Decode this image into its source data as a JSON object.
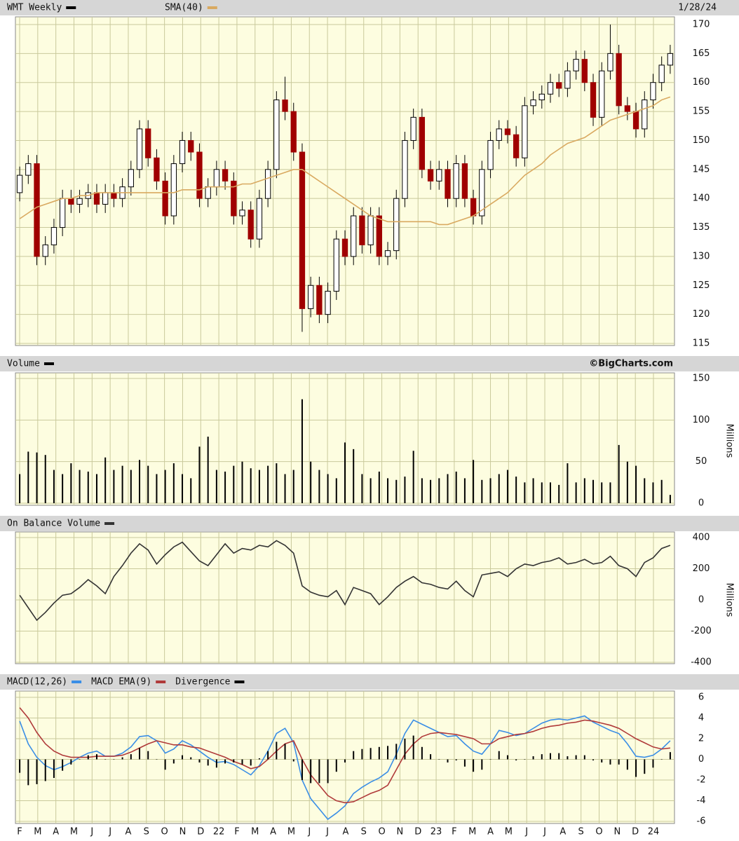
{
  "chart_data": [
    {
      "type": "candlestick",
      "title": "WMT Weekly",
      "date": "1/28/24",
      "color": "#000000",
      "up_color": "#ffffff",
      "down_color": "#a00000",
      "open": [
        141,
        144,
        146,
        130,
        132,
        135,
        140,
        139,
        140,
        141,
        139,
        141,
        140,
        142,
        145,
        152,
        147,
        143,
        137,
        146,
        150,
        148,
        140,
        142,
        145,
        143,
        137,
        138,
        133,
        140,
        145,
        157,
        155,
        148,
        121,
        125,
        120,
        124,
        133,
        130,
        137,
        132,
        137,
        130,
        131,
        140,
        150,
        154,
        145,
        143,
        145,
        140,
        146,
        140,
        137,
        145,
        150,
        152,
        151,
        147,
        156,
        157,
        158,
        160,
        159,
        162,
        164,
        160,
        154,
        162,
        165,
        156,
        155,
        152,
        157,
        160,
        163
      ],
      "high": [
        145.5,
        147.5,
        147.5,
        133.5,
        136.5,
        141.5,
        141.5,
        141.5,
        142.5,
        142.5,
        142.5,
        142.5,
        143.5,
        146.5,
        153.5,
        153.5,
        148.5,
        144.5,
        147.5,
        151.5,
        151.5,
        149.5,
        143.5,
        146.5,
        146.5,
        144.5,
        139.5,
        139.5,
        141.5,
        146.5,
        158.5,
        161,
        156.5,
        149.5,
        126.5,
        126.5,
        125.5,
        134.5,
        134.5,
        138.5,
        138.5,
        138.5,
        138.5,
        132.5,
        141.5,
        151.5,
        155.5,
        155.5,
        146.5,
        146.5,
        146.5,
        147.5,
        147.5,
        141.5,
        146.5,
        151.5,
        153.5,
        153.5,
        152.5,
        157.5,
        158.5,
        159.5,
        161.5,
        161.5,
        163.5,
        165.5,
        165.5,
        161.5,
        163.5,
        170,
        166.5,
        157.5,
        156.5,
        158.5,
        161.5,
        164.5,
        166.5
      ],
      "low": [
        139.5,
        142.5,
        128.5,
        128.5,
        130.5,
        133.5,
        137.5,
        137.5,
        138.5,
        137.5,
        137.5,
        138.5,
        138.5,
        140.5,
        143.5,
        145.5,
        141.5,
        135.5,
        135.5,
        144.5,
        146.5,
        138.5,
        138.5,
        140.5,
        141.5,
        135.5,
        135.5,
        131.5,
        131.5,
        138.5,
        143.5,
        153.5,
        146.5,
        117,
        119.5,
        118.5,
        118.5,
        122.5,
        128.5,
        128.5,
        130.5,
        130.5,
        128.5,
        128.5,
        129.5,
        138.5,
        148.5,
        143.5,
        141.5,
        141.5,
        138.5,
        138.5,
        138.5,
        135.5,
        135.5,
        143.5,
        148.5,
        149.5,
        145.5,
        145.5,
        154.5,
        155.5,
        156.5,
        157.5,
        157.5,
        160.5,
        158.5,
        152.5,
        152.5,
        160.5,
        154.5,
        153.5,
        150.5,
        150.5,
        155.5,
        158.5,
        161.5
      ],
      "close": [
        144,
        146,
        130,
        132,
        135,
        140,
        139,
        140,
        141,
        139,
        141,
        140,
        142,
        145,
        152,
        147,
        143,
        137,
        146,
        150,
        148,
        140,
        142,
        145,
        143,
        137,
        138,
        133,
        140,
        145,
        157,
        155,
        148,
        121,
        125,
        120,
        124,
        133,
        130,
        137,
        132,
        137,
        130,
        131,
        140,
        150,
        154,
        145,
        143,
        145,
        140,
        146,
        140,
        137,
        145,
        150,
        152,
        151,
        147,
        156,
        157,
        158,
        160,
        159,
        162,
        164,
        160,
        154,
        162,
        165,
        156,
        155,
        152,
        157,
        160,
        163,
        165
      ],
      "overlays": [
        {
          "name": "SMA(40)",
          "color": "#d9a960",
          "values": [
            136.5,
            137.5,
            138.5,
            139,
            139.5,
            140,
            140,
            140.5,
            140.5,
            141,
            141,
            141,
            141,
            141,
            141,
            141,
            141,
            141,
            141,
            141.5,
            141.5,
            141.5,
            142,
            142,
            142,
            142,
            142.5,
            142.5,
            143,
            143.5,
            144,
            144.5,
            145,
            145,
            144,
            143,
            142,
            141,
            140,
            139,
            138,
            137,
            136.5,
            136,
            136,
            136,
            136,
            136,
            136,
            135.5,
            135.5,
            136,
            136.5,
            137,
            138,
            139,
            140,
            141,
            142.5,
            144,
            145,
            146,
            147.5,
            148.5,
            149.5,
            150,
            150.5,
            151.5,
            152.5,
            153.5,
            154,
            154.5,
            155,
            155.5,
            156,
            157,
            157.5
          ]
        }
      ],
      "ylim": [
        115,
        170
      ],
      "yticks": [
        115,
        120,
        125,
        130,
        135,
        140,
        145,
        150,
        155,
        160,
        165,
        170
      ],
      "grid": true
    },
    {
      "type": "bar",
      "title": "Volume",
      "credit": "©BigCharts.com",
      "ylabel": "Millions",
      "color": "#000000",
      "values": [
        35,
        62,
        61,
        58,
        40,
        35,
        48,
        40,
        38,
        35,
        55,
        40,
        45,
        40,
        52,
        45,
        35,
        40,
        48,
        35,
        30,
        68,
        80,
        40,
        38,
        45,
        50,
        42,
        40,
        45,
        48,
        35,
        40,
        125,
        50,
        40,
        35,
        30,
        73,
        65,
        35,
        30,
        38,
        30,
        28,
        32,
        63,
        30,
        28,
        30,
        35,
        38,
        30,
        52,
        28,
        30,
        35,
        40,
        32,
        25,
        30,
        25,
        25,
        22,
        48,
        25,
        30,
        28,
        25,
        25,
        70,
        50,
        45,
        30,
        25,
        28,
        10
      ],
      "ylim": [
        0,
        150
      ],
      "yticks": [
        0,
        50,
        100,
        150
      ],
      "grid": true
    },
    {
      "type": "line",
      "title": "On Balance Volume",
      "ylabel": "Millions",
      "color": "#333333",
      "values": [
        30,
        -50,
        -130,
        -80,
        -20,
        30,
        40,
        80,
        130,
        90,
        40,
        150,
        220,
        300,
        360,
        320,
        230,
        290,
        340,
        370,
        310,
        250,
        220,
        290,
        360,
        300,
        330,
        320,
        350,
        340,
        380,
        350,
        300,
        90,
        50,
        30,
        20,
        60,
        -30,
        80,
        60,
        40,
        -30,
        20,
        80,
        120,
        150,
        110,
        100,
        80,
        70,
        120,
        60,
        20,
        160,
        170,
        180,
        150,
        200,
        230,
        220,
        240,
        250,
        270,
        230,
        240,
        260,
        230,
        240,
        280,
        220,
        200,
        150,
        240,
        270,
        330,
        350
      ],
      "ylim": [
        -400,
        400
      ],
      "yticks": [
        -400,
        -200,
        0,
        200,
        400
      ],
      "grid": true
    },
    {
      "type": "macd",
      "series": [
        {
          "name": "MACD(12,26)",
          "color": "#3a8ee6",
          "style": "line",
          "values": [
            3.7,
            1.5,
            0.2,
            -0.6,
            -1,
            -0.7,
            -0.3,
            0.2,
            0.6,
            0.8,
            0.3,
            0.3,
            0.6,
            1.2,
            2.2,
            2.3,
            1.8,
            0.6,
            1,
            1.8,
            1.4,
            0.8,
            0.2,
            -0.3,
            -0.2,
            -0.5,
            -1,
            -1.5,
            -0.6,
            0.8,
            2.5,
            3,
            1.6,
            -2,
            -3.8,
            -4.8,
            -5.8,
            -5.2,
            -4.5,
            -3.3,
            -2.7,
            -2.2,
            -1.8,
            -1.2,
            0.5,
            2.5,
            3.8,
            3.4,
            3,
            2.6,
            2.2,
            2.3,
            1.5,
            0.8,
            0.5,
            1.5,
            2.8,
            2.6,
            2.3,
            2.5,
            3,
            3.5,
            3.8,
            3.9,
            3.8,
            4,
            4.2,
            3.6,
            3.2,
            2.8,
            2.5,
            1.5,
            0.3,
            0.2,
            0.4,
            1,
            1.8
          ]
        },
        {
          "name": "MACD EMA(9)",
          "color": "#b03a3a",
          "style": "line",
          "values": [
            5,
            4,
            2.6,
            1.5,
            0.8,
            0.4,
            0.2,
            0.2,
            0.2,
            0.3,
            0.3,
            0.3,
            0.4,
            0.7,
            1.1,
            1.5,
            1.8,
            1.6,
            1.4,
            1.4,
            1.2,
            1.1,
            0.8,
            0.5,
            0.2,
            -0.2,
            -0.5,
            -0.9,
            -0.7,
            0,
            0.8,
            1.5,
            1.8,
            0,
            -1.5,
            -2.5,
            -3.5,
            -4,
            -4.2,
            -4.1,
            -3.7,
            -3.3,
            -3,
            -2.5,
            -1,
            0.5,
            1.5,
            2.2,
            2.5,
            2.6,
            2.5,
            2.4,
            2.2,
            2,
            1.5,
            1.5,
            2,
            2.2,
            2.4,
            2.5,
            2.7,
            3,
            3.2,
            3.3,
            3.5,
            3.6,
            3.8,
            3.7,
            3.5,
            3.3,
            3,
            2.5,
            2,
            1.6,
            1.2,
            1,
            1.1
          ]
        },
        {
          "name": "Divergence",
          "color": "#000000",
          "style": "bar",
          "values": [
            -1.3,
            -2.5,
            -2.4,
            -2.1,
            -1.8,
            -1.1,
            -0.5,
            0,
            0.4,
            0.5,
            0,
            0,
            0.2,
            0.5,
            1.1,
            0.8,
            0,
            -1,
            -0.4,
            0.4,
            0.2,
            -0.3,
            -0.6,
            -0.8,
            -0.4,
            -0.3,
            -0.5,
            -0.6,
            0.1,
            0.8,
            1.7,
            1.5,
            -0.2,
            -2,
            -2.3,
            -2.3,
            -2.3,
            -1.2,
            -0.3,
            0.8,
            1,
            1.1,
            1.2,
            1.3,
            1.5,
            2,
            2.3,
            1.2,
            0.5,
            0,
            -0.3,
            -0.1,
            -0.7,
            -1.2,
            -1,
            0,
            0.8,
            0.4,
            -0.1,
            0,
            0.3,
            0.5,
            0.6,
            0.6,
            0.3,
            0.4,
            0.4,
            -0.1,
            -0.3,
            -0.5,
            -0.5,
            -1,
            -1.7,
            -1.4,
            -0.8,
            0,
            0.7
          ]
        }
      ],
      "xtick_labels": [
        "F",
        "M",
        "A",
        "M",
        "J",
        "J",
        "A",
        "S",
        "O",
        "N",
        "D",
        "22",
        "F",
        "M",
        "A",
        "M",
        "J",
        "J",
        "A",
        "S",
        "O",
        "N",
        "D",
        "23",
        "F",
        "M",
        "A",
        "M",
        "J",
        "J",
        "A",
        "S",
        "O",
        "N",
        "D",
        "24"
      ],
      "ylim": [
        -6,
        6
      ],
      "yticks": [
        -6,
        -4,
        -2,
        0,
        2,
        4,
        6
      ],
      "grid": true
    }
  ]
}
